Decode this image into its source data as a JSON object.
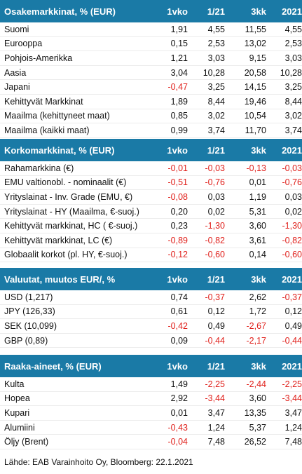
{
  "columns": [
    "1vko",
    "1/21",
    "3kk",
    "2021"
  ],
  "sections": [
    {
      "title": "Osakemarkkinat, % (EUR)",
      "rows": [
        {
          "label": "Suomi",
          "values": [
            "1,91",
            "4,55",
            "11,55",
            "4,55"
          ]
        },
        {
          "label": "Eurooppa",
          "values": [
            "0,15",
            "2,53",
            "13,02",
            "2,53"
          ]
        },
        {
          "label": "Pohjois-Amerikka",
          "values": [
            "1,21",
            "3,03",
            "9,15",
            "3,03"
          ]
        },
        {
          "label": "Aasia",
          "values": [
            "3,04",
            "10,28",
            "20,58",
            "10,28"
          ]
        },
        {
          "label": "Japani",
          "values": [
            "-0,47",
            "3,25",
            "14,15",
            "3,25"
          ]
        },
        {
          "label": "Kehittyvät Markkinat",
          "values": [
            "1,89",
            "8,44",
            "19,46",
            "8,44"
          ]
        },
        {
          "label": "Maailma (kehittyneet maat)",
          "values": [
            "0,85",
            "3,02",
            "10,54",
            "3,02"
          ]
        },
        {
          "label": "Maailma (kaikki maat)",
          "values": [
            "0,99",
            "3,74",
            "11,70",
            "3,74"
          ]
        }
      ]
    },
    {
      "title": "Korkomarkkinat, % (EUR)",
      "rows": [
        {
          "label": "Rahamarkkina (€)",
          "values": [
            "-0,01",
            "-0,03",
            "-0,13",
            "-0,03"
          ]
        },
        {
          "label": "EMU valtionobl. - nominaalit (€)",
          "values": [
            "-0,51",
            "-0,76",
            "0,01",
            "-0,76"
          ]
        },
        {
          "label": "Yrityslainat - Inv. Grade (EMU, €)",
          "values": [
            "-0,08",
            "0,03",
            "1,19",
            "0,03"
          ]
        },
        {
          "label": "Yrityslainat - HY (Maailma, €-suoj.)",
          "values": [
            "0,20",
            "0,02",
            "5,31",
            "0,02"
          ]
        },
        {
          "label": "Kehittyvät markkinat, HC ( €-suoj.)",
          "values": [
            "0,23",
            "-1,30",
            "3,60",
            "-1,30"
          ]
        },
        {
          "label": "Kehittyvät markkinat, LC (€)",
          "values": [
            "-0,89",
            "-0,82",
            "3,61",
            "-0,82"
          ]
        },
        {
          "label": "Globaalit korkot (pl. HY,  €-suoj.)",
          "values": [
            "-0,12",
            "-0,60",
            "0,14",
            "-0,60"
          ]
        }
      ]
    },
    {
      "title": "Valuutat, muutos EUR/,  %",
      "rows": [
        {
          "label": "USD (1,217)",
          "values": [
            "0,74",
            "-0,37",
            "2,62",
            "-0,37"
          ]
        },
        {
          "label": "JPY (126,33)",
          "values": [
            "0,61",
            "0,12",
            "1,72",
            "0,12"
          ]
        },
        {
          "label": "SEK (10,099)",
          "values": [
            "-0,42",
            "0,49",
            "-2,67",
            "0,49"
          ]
        },
        {
          "label": "GBP (0,89)",
          "values": [
            "0,09",
            "-0,44",
            "-2,17",
            "-0,44"
          ]
        }
      ]
    },
    {
      "title": "Raaka-aineet, % (EUR)",
      "rows": [
        {
          "label": "Kulta",
          "values": [
            "1,49",
            "-2,25",
            "-2,44",
            "-2,25"
          ]
        },
        {
          "label": "Hopea",
          "values": [
            "2,92",
            "-3,44",
            "3,60",
            "-3,44"
          ]
        },
        {
          "label": "Kupari",
          "values": [
            "0,01",
            "3,47",
            "13,35",
            "3,47"
          ]
        },
        {
          "label": "Alumiini",
          "values": [
            "-0,43",
            "1,24",
            "5,37",
            "1,24"
          ]
        },
        {
          "label": "Öljy (Brent)",
          "values": [
            "-0,04",
            "7,48",
            "26,52",
            "7,48"
          ]
        }
      ]
    }
  ],
  "footer": "Lähde: EAB Varainhoito Oy, Bloomberg: 22.1.2021",
  "colors": {
    "header_bg": "#1a7aa6",
    "negative": "#e0201b"
  }
}
